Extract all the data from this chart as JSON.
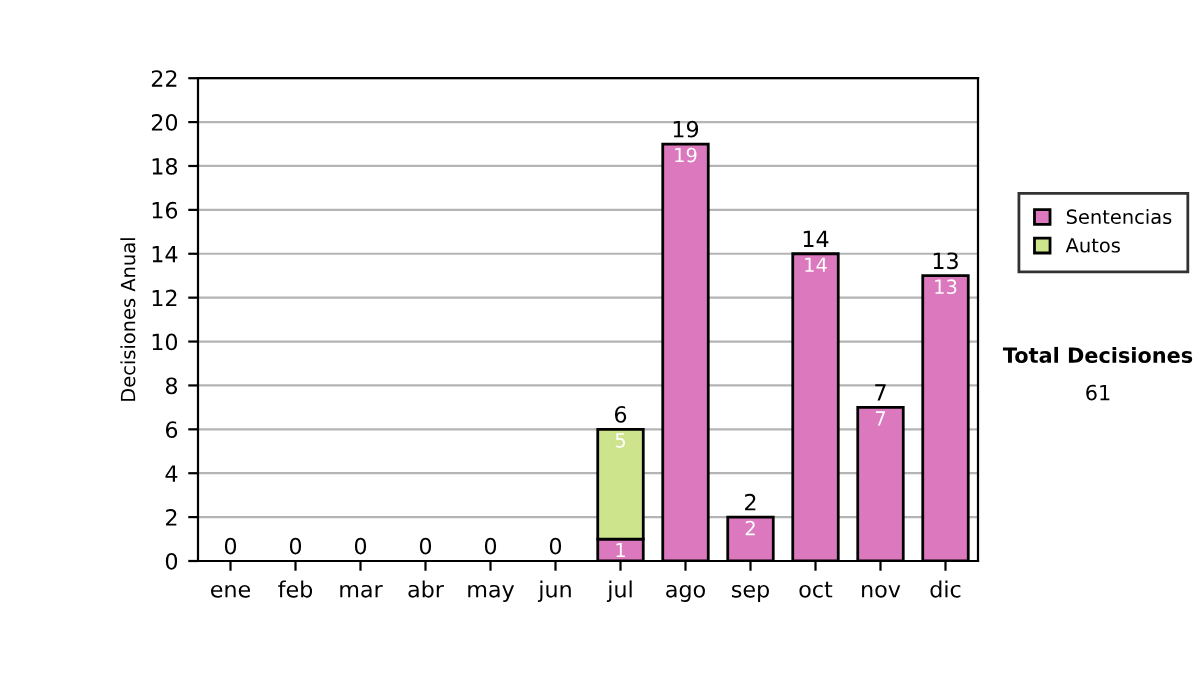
{
  "chart_data": {
    "type": "bar",
    "stacked": true,
    "ylabel": "Decisiones Anual",
    "categories": [
      "ene",
      "feb",
      "mar",
      "abr",
      "may",
      "jun",
      "jul",
      "ago",
      "sep",
      "oct",
      "nov",
      "dic"
    ],
    "series": [
      {
        "name": "Sentencias",
        "color": "#dc78be",
        "values": [
          0,
          0,
          0,
          0,
          0,
          0,
          1,
          19,
          2,
          14,
          7,
          13
        ],
        "value_labels": [
          null,
          null,
          null,
          null,
          null,
          null,
          "1",
          "19",
          "2",
          "14",
          "7",
          "13"
        ]
      },
      {
        "name": "Autos",
        "color": "#cde48c",
        "values": [
          0,
          0,
          0,
          0,
          0,
          0,
          5,
          0,
          0,
          0,
          0,
          0
        ],
        "value_labels": [
          null,
          null,
          null,
          null,
          null,
          null,
          "5",
          null,
          null,
          null,
          null,
          null
        ]
      }
    ],
    "totals": [
      "0",
      "0",
      "0",
      "0",
      "0",
      "0",
      "6",
      "19",
      "2",
      "14",
      "7",
      "13"
    ],
    "ylim": [
      0,
      22
    ],
    "yticks": [
      0,
      2,
      4,
      6,
      8,
      10,
      12,
      14,
      16,
      18,
      20,
      22
    ],
    "grid": "y",
    "legend": "right",
    "annotations": [
      "Total Decisiones",
      "61"
    ]
  }
}
